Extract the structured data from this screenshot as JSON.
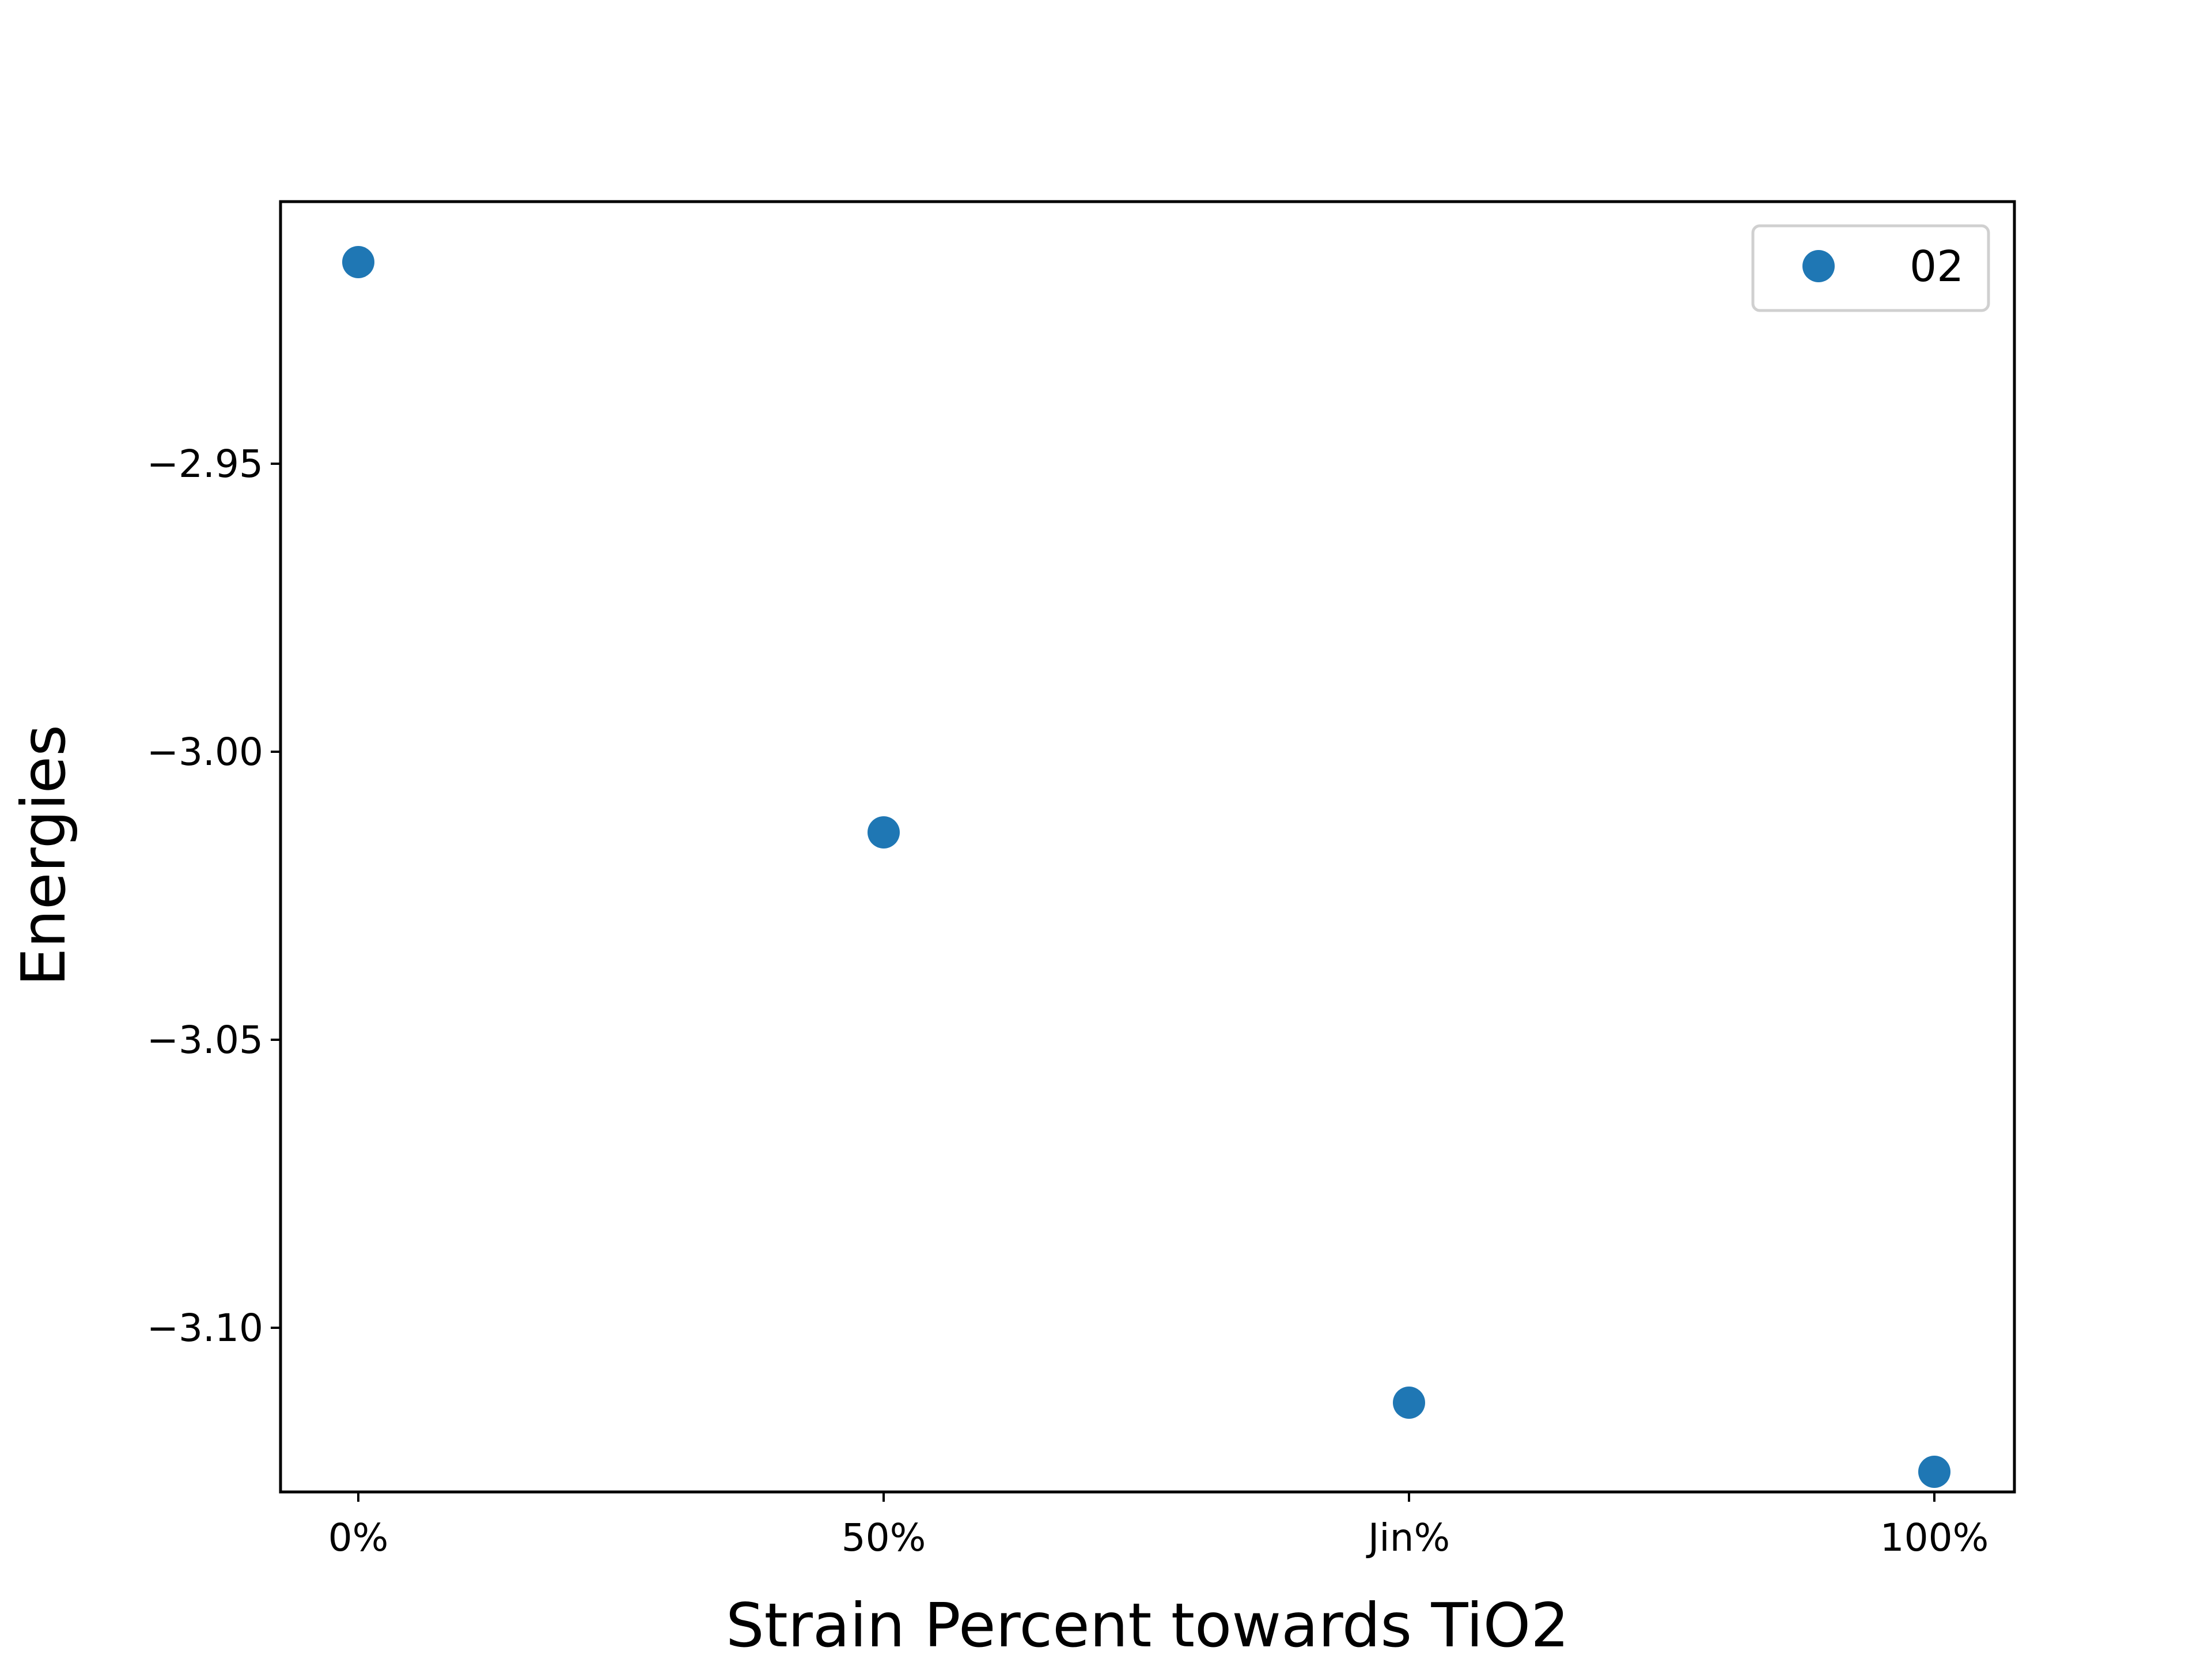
{
  "chart_data": {
    "type": "scatter",
    "title": "",
    "xlabel": "Strain Percent towards TiO2",
    "ylabel": "Energies",
    "categories": [
      "0%",
      "50%",
      "Jin%",
      "100%"
    ],
    "series": [
      {
        "name": "02",
        "color": "#1f77b4",
        "values": [
          -2.915,
          -3.014,
          -3.113,
          -3.125
        ]
      }
    ],
    "yticks": [
      -2.95,
      -3.0,
      -3.05,
      -3.1
    ],
    "ytick_labels": [
      "−2.95",
      "−3.00",
      "−3.05",
      "−3.10"
    ],
    "ylim": [
      -3.1285,
      -2.9045
    ],
    "grid": false,
    "legend_position": "top-right"
  }
}
